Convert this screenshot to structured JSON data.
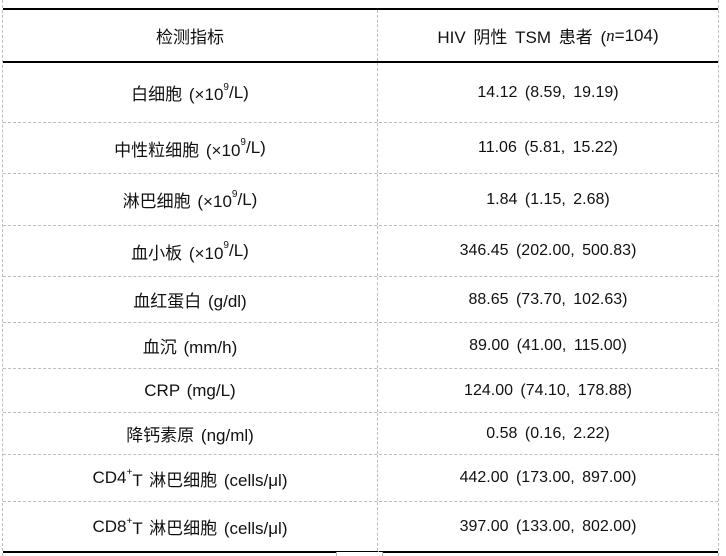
{
  "table": {
    "header": {
      "metric": "检测指标",
      "cohort_pre": "HIV 阴性 TSM 患者 (",
      "cohort_n": "n",
      "cohort_post": "=104)"
    },
    "rows": [
      {
        "label_pre": "白细胞 (×10",
        "sup": "9",
        "label_post": "/L)",
        "value": "14.12 (8.59, 19.19)"
      },
      {
        "label_pre": "中性粒细胞 (×10",
        "sup": "9",
        "label_post": "/L)",
        "value": "11.06 (5.81, 15.22)"
      },
      {
        "label_pre": "淋巴细胞 (×10",
        "sup": "9",
        "label_post": "/L)",
        "value": "1.84 (1.15, 2.68)"
      },
      {
        "label_pre": "血小板 (×10",
        "sup": "9",
        "label_post": "/L)",
        "value": "346.45 (202.00, 500.83)"
      },
      {
        "label_pre": "血红蛋白 (g/dl)",
        "sup": "",
        "label_post": "",
        "value": "88.65 (73.70, 102.63)"
      },
      {
        "label_pre": "血沉 (mm/h)",
        "sup": "",
        "label_post": "",
        "value": "89.00 (41.00, 115.00)"
      },
      {
        "label_pre": "CRP (mg/L)",
        "sup": "",
        "label_post": "",
        "value": "124.00 (74.10, 178.88)"
      },
      {
        "label_pre": "降钙素原 (ng/ml)",
        "sup": "",
        "label_post": "",
        "value": "0.58 (0.16, 2.22)"
      },
      {
        "label_pre": "CD4",
        "sup": "+",
        "label_post": "T 淋巴细胞 (cells/μl)",
        "value": "442.00 (173.00, 897.00)"
      },
      {
        "label_pre": "CD8",
        "sup": "+",
        "label_post": "T 淋巴细胞 (cells/μl)",
        "value": "397.00 (133.00, 802.00)"
      }
    ],
    "colors": {
      "major_rule": "#000000",
      "minor_rule_dashed": "#bdbdbd",
      "text": "#111111",
      "background": "#ffffff"
    }
  }
}
